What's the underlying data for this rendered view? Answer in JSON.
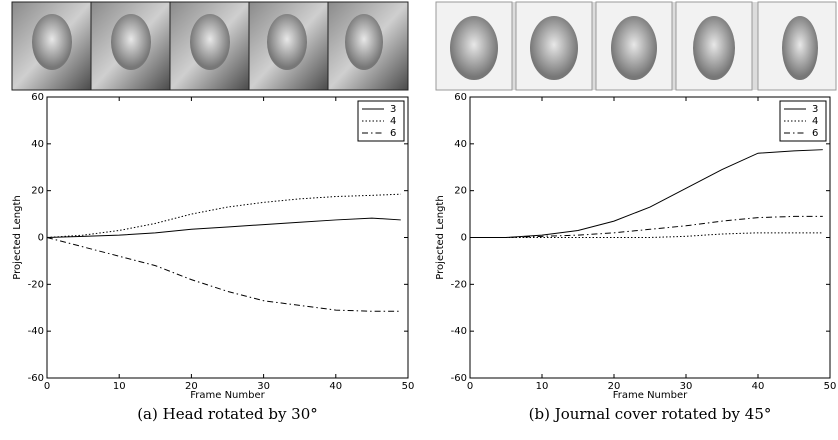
{
  "chart_data": [
    {
      "type": "line",
      "caption": "(a) Head rotated by 30°",
      "xlabel": "Frame Number",
      "ylabel": "Projected Length",
      "x": [
        0,
        5,
        10,
        15,
        20,
        25,
        30,
        35,
        40,
        45,
        49
      ],
      "series": [
        {
          "name": "3",
          "color": "#000000",
          "dash": "solid",
          "values": [
            0,
            0.5,
            1,
            2,
            3.5,
            4.5,
            5.5,
            6.5,
            7.5,
            8.3,
            7.5
          ]
        },
        {
          "name": "4",
          "color": "#000000",
          "dash": "dotted",
          "values": [
            0,
            1,
            3,
            6,
            10,
            13,
            15,
            16.5,
            17.5,
            18,
            18.5
          ]
        },
        {
          "name": "6",
          "color": "#000000",
          "dash": "dashdot",
          "values": [
            0,
            -4,
            -8,
            -12,
            -18,
            -23,
            -27,
            -29,
            -31,
            -31.5,
            -31.5
          ]
        }
      ],
      "xlim": [
        0,
        50
      ],
      "xticks": [
        0,
        10,
        20,
        30,
        40,
        50
      ],
      "ylim": [
        -60,
        60
      ],
      "yticks": [
        -60,
        -40,
        -20,
        0,
        20,
        40,
        60
      ],
      "legend": "upper right"
    },
    {
      "type": "line",
      "caption": "(b) Journal cover rotated by 45°",
      "xlabel": "Frame Number",
      "ylabel": "Projected Length",
      "x": [
        0,
        5,
        10,
        15,
        20,
        25,
        30,
        35,
        40,
        45,
        49
      ],
      "series": [
        {
          "name": "3",
          "color": "#000000",
          "dash": "solid",
          "values": [
            0,
            0,
            1,
            3,
            7,
            13,
            21,
            29,
            36,
            37,
            37.5
          ]
        },
        {
          "name": "4",
          "color": "#000000",
          "dash": "dotted",
          "values": [
            0,
            0,
            0,
            0,
            0,
            0,
            0.5,
            1.5,
            2,
            2,
            2
          ]
        },
        {
          "name": "6",
          "color": "#000000",
          "dash": "dashdot",
          "values": [
            0,
            0,
            0.5,
            1,
            2,
            3.5,
            5,
            7,
            8.5,
            9,
            9
          ]
        }
      ],
      "xlim": [
        0,
        50
      ],
      "xticks": [
        0,
        10,
        20,
        30,
        40,
        50
      ],
      "ylim": [
        -60,
        60
      ],
      "yticks": [
        -60,
        -40,
        -20,
        0,
        20,
        40,
        60
      ],
      "legend": "upper right"
    }
  ]
}
